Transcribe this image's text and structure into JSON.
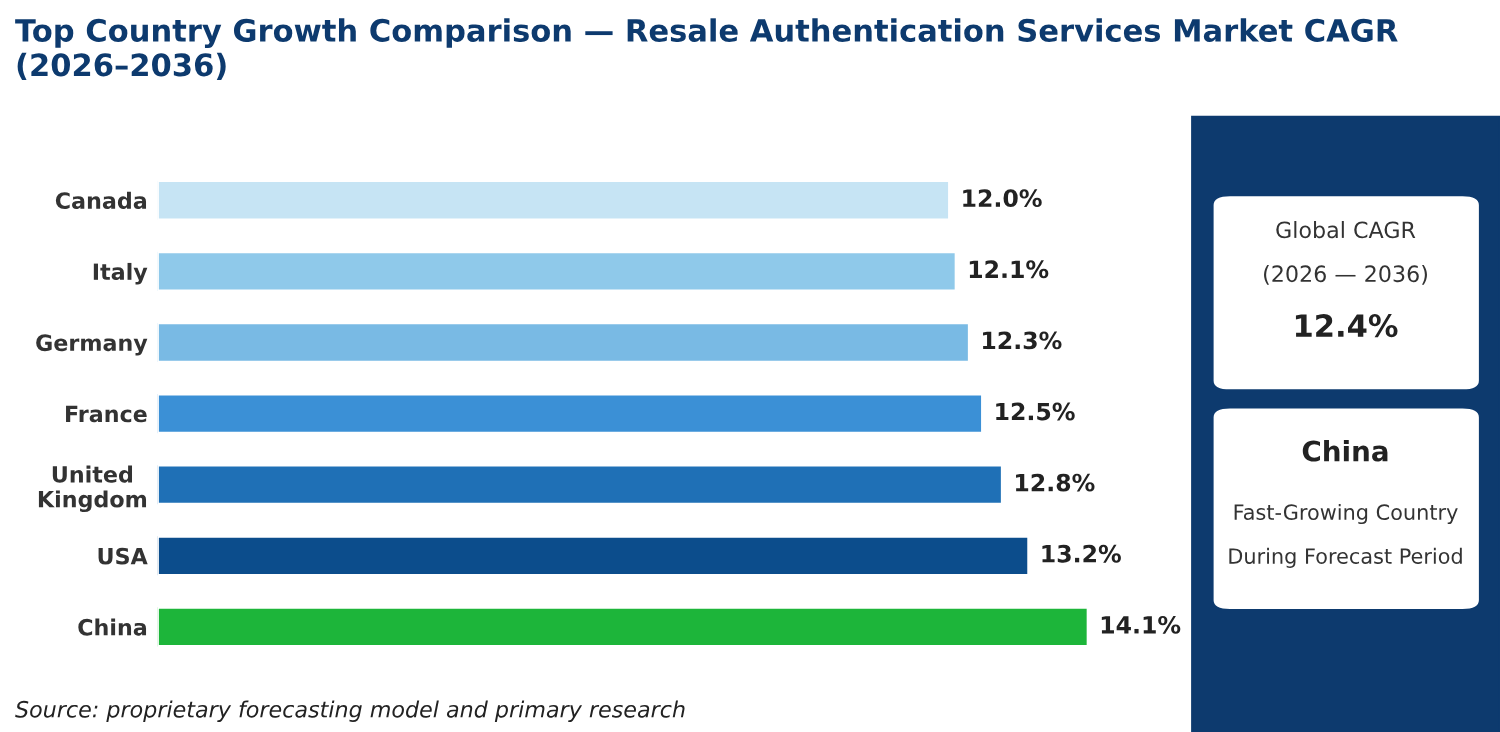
{
  "chart_data": {
    "type": "bar",
    "orientation": "horizontal",
    "title": "Top Country Growth Comparison — Resale Authentication Services Market CAGR (2026–2036)",
    "categories": [
      "Canada",
      "Italy",
      "Germany",
      "France",
      "United Kingdom",
      "USA",
      "China"
    ],
    "values": [
      12.0,
      12.1,
      12.3,
      12.5,
      12.8,
      13.2,
      14.1
    ],
    "colors": [
      "#c6e4f4",
      "#8fc9ea",
      "#79bae4",
      "#3b90d6",
      "#1f70b6",
      "#0c4d8c",
      "#1db53a"
    ],
    "value_labels": [
      "12.0%",
      "12.1%",
      "12.3%",
      "12.5%",
      "12.8%",
      "13.2%",
      "14.1%"
    ],
    "tick_labels": "y",
    "grid": false,
    "legend": false,
    "annotations": [
      "Global CAGR",
      "(2026 — 2036)",
      "12.4%",
      "China",
      "Fast-Growing Country",
      "During Forecast Period",
      "Source: proprietary forecasting model and primary research"
    ]
  }
}
